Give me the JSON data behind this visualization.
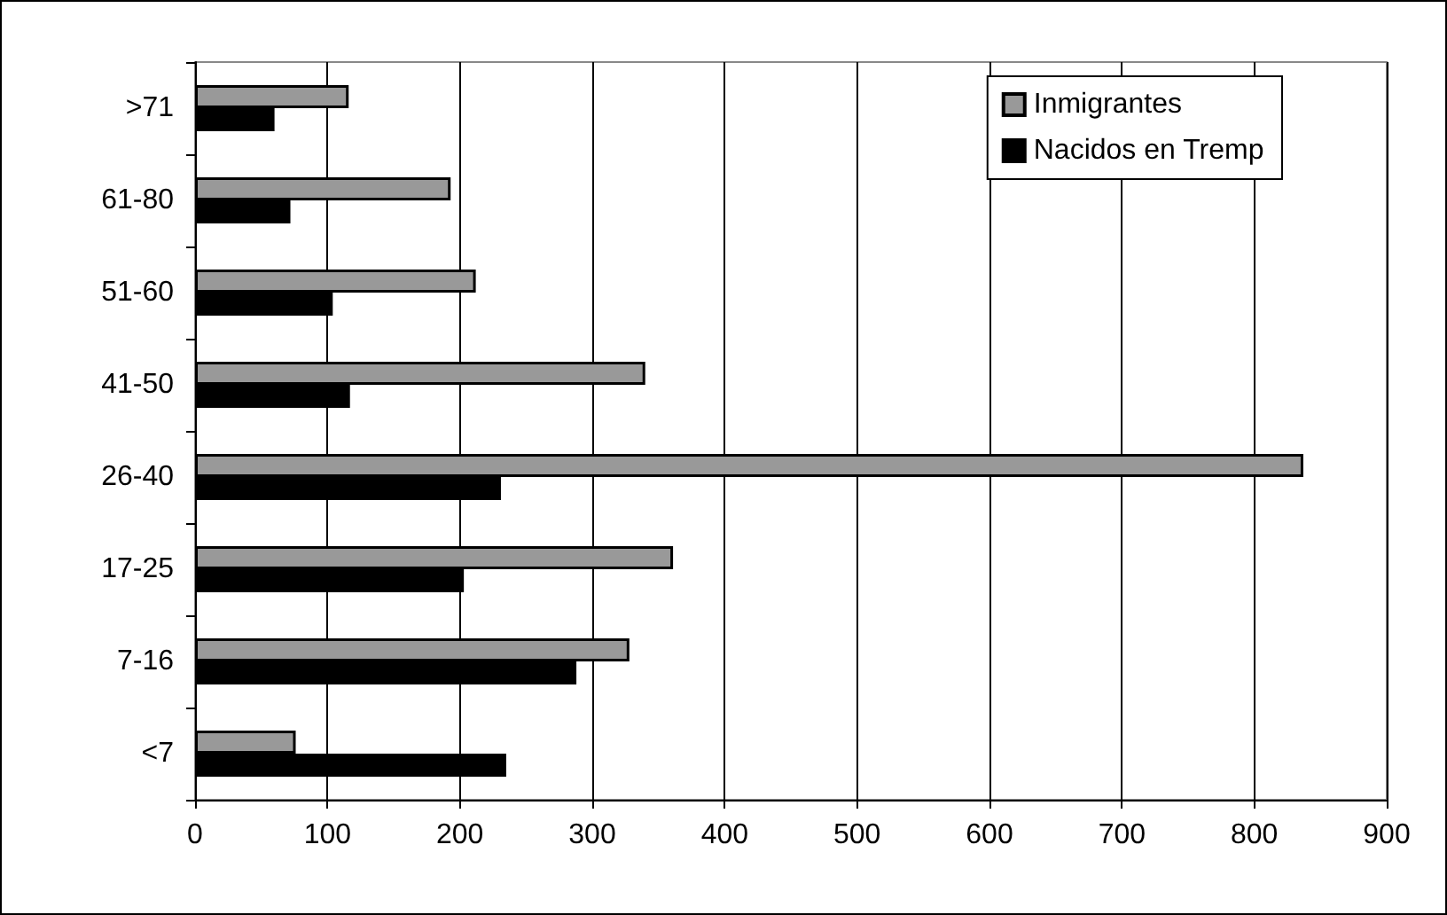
{
  "chart_data": {
    "type": "bar",
    "orientation": "horizontal",
    "categories": [
      ">71",
      "61-80",
      "51-60",
      "41-50",
      "26-40",
      "17-25",
      "7-16",
      "<7"
    ],
    "series": [
      {
        "name": "Inmigrantes",
        "color": "#999999",
        "values": [
          116,
          193,
          212,
          340,
          837,
          361,
          328,
          76
        ]
      },
      {
        "name": "Nacidos en Tremp",
        "color": "#000000",
        "values": [
          60,
          72,
          104,
          117,
          231,
          203,
          288,
          235
        ]
      }
    ],
    "xlim": [
      0,
      900
    ],
    "xticks": [
      0,
      100,
      200,
      300,
      400,
      500,
      600,
      700,
      800,
      900
    ],
    "grid": "x",
    "legend": "top right"
  }
}
